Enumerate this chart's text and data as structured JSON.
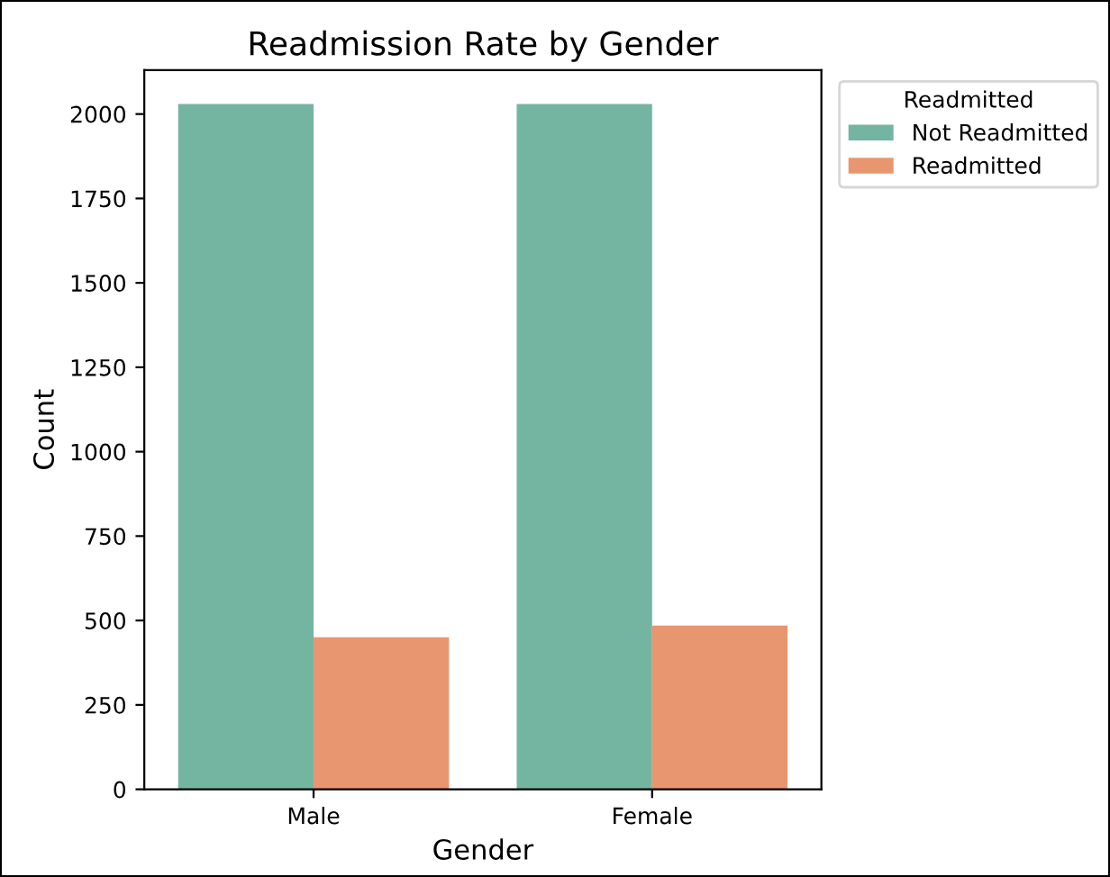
{
  "chart_data": {
    "type": "bar",
    "title": "Readmission Rate by Gender",
    "xlabel": "Gender",
    "ylabel": "Count",
    "legend_title": "Readmitted",
    "categories": [
      "Male",
      "Female"
    ],
    "series": [
      {
        "name": "Not Readmitted",
        "color": "#74b5a1",
        "values": [
          2030,
          2030
        ]
      },
      {
        "name": "Readmitted",
        "color": "#e8966f",
        "values": [
          450,
          485
        ]
      }
    ],
    "ylim": [
      0,
      2130
    ],
    "yticks": [
      0,
      250,
      500,
      750,
      1000,
      1250,
      1500,
      1750,
      2000
    ],
    "grid": false,
    "legend": "top right"
  }
}
